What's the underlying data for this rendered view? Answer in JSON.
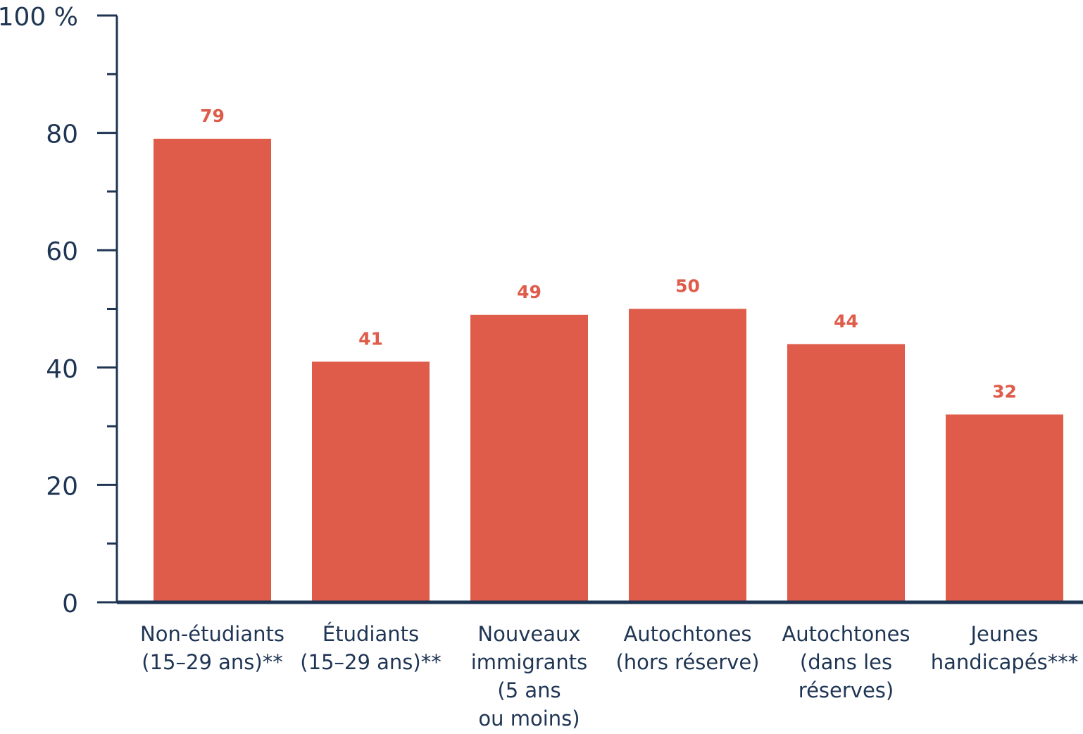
{
  "chart_data": {
    "type": "bar",
    "categories": [
      [
        "Non-étudiants",
        "(15–29 ans)**"
      ],
      [
        "Étudiants",
        "(15–29 ans)**"
      ],
      [
        "Nouveaux",
        "immigrants",
        "(5 ans",
        "ou moins)"
      ],
      [
        "Autochtones",
        "(hors réserve)"
      ],
      [
        "Autochtones",
        "(dans les",
        "réserves)"
      ],
      [
        "Jeunes",
        "handicapés***"
      ]
    ],
    "values": [
      79,
      41,
      49,
      50,
      44,
      32
    ],
    "value_labels": [
      "79",
      "41",
      "49",
      "50",
      "44",
      "32"
    ],
    "ylim": [
      0,
      100
    ],
    "y_ticks": [
      0,
      20,
      40,
      60,
      80,
      100
    ],
    "y_tick_labels": [
      "0",
      "20",
      "40",
      "60",
      "80",
      "100 %"
    ],
    "y_minor_ticks": [
      10,
      30,
      50,
      70,
      90
    ],
    "grid": false,
    "colors": {
      "bar": "#df5b4a",
      "value_label": "#df5b4a",
      "axis": "#1f3554",
      "text": "#1f3554"
    }
  }
}
